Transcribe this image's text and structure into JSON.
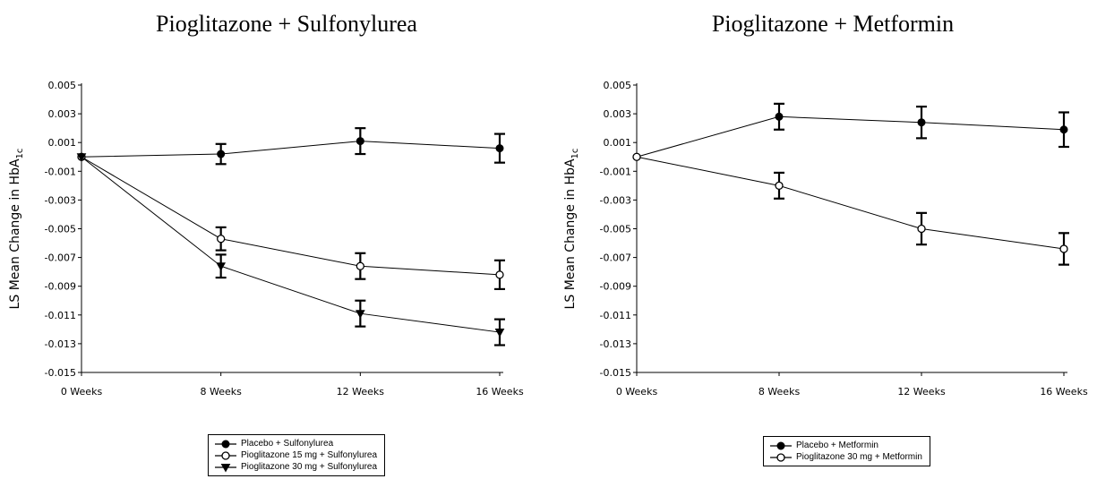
{
  "chart_data": [
    {
      "type": "line",
      "title": "Pioglitazone + Sulfonylurea",
      "ylabel": "LS Mean Change in HbA",
      "ylabel_sub": "1c",
      "categories": [
        "0 Weeks",
        "8 Weeks",
        "12 Weeks",
        "16 Weeks"
      ],
      "ylim": [
        -0.015,
        0.005
      ],
      "yticks": [
        "0.005",
        "0.003",
        "0.001",
        "-0.001",
        "-0.003",
        "-0.005",
        "-0.007",
        "-0.009",
        "-0.011",
        "-0.013",
        "-0.015"
      ],
      "grid": false,
      "legend_position": "bottom",
      "series": [
        {
          "name": "Placebo + Sulfonylurea",
          "marker": "filled-circle",
          "values": [
            0.0,
            0.0002,
            0.0011,
            0.0006
          ],
          "error": [
            0,
            0.0007,
            0.0009,
            0.001
          ]
        },
        {
          "name": "Pioglitazone 15 mg + Sulfonylurea",
          "marker": "open-circle",
          "values": [
            0.0,
            -0.0057,
            -0.0076,
            -0.0082
          ],
          "error": [
            0,
            0.0008,
            0.0009,
            0.001
          ]
        },
        {
          "name": "Pioglitazone 30 mg + Sulfonylurea",
          "marker": "filled-triangle-down",
          "values": [
            0.0,
            -0.0076,
            -0.0109,
            -0.0122
          ],
          "error": [
            0,
            0.0008,
            0.0009,
            0.0009
          ]
        }
      ]
    },
    {
      "type": "line",
      "title": "Pioglitazone + Metformin",
      "ylabel": "LS Mean Change in HbA",
      "ylabel_sub": "1c",
      "categories": [
        "0 Weeks",
        "8 Weeks",
        "12 Weeks",
        "16 Weeks"
      ],
      "ylim": [
        -0.015,
        0.005
      ],
      "yticks": [
        "0.005",
        "0.003",
        "0.001",
        "-0.001",
        "-0.003",
        "-0.005",
        "-0.007",
        "-0.009",
        "-0.011",
        "-0.013",
        "-0.015"
      ],
      "grid": false,
      "legend_position": "bottom",
      "series": [
        {
          "name": "Placebo + Metformin",
          "marker": "filled-circle",
          "values": [
            0.0,
            0.0028,
            0.0024,
            0.0019
          ],
          "error": [
            0,
            0.0009,
            0.0011,
            0.0012
          ]
        },
        {
          "name": "Pioglitazone 30 mg + Metformin",
          "marker": "open-circle",
          "values": [
            0.0,
            -0.002,
            -0.005,
            -0.0064
          ],
          "error": [
            0,
            0.0009,
            0.0011,
            0.0011
          ]
        }
      ]
    }
  ]
}
